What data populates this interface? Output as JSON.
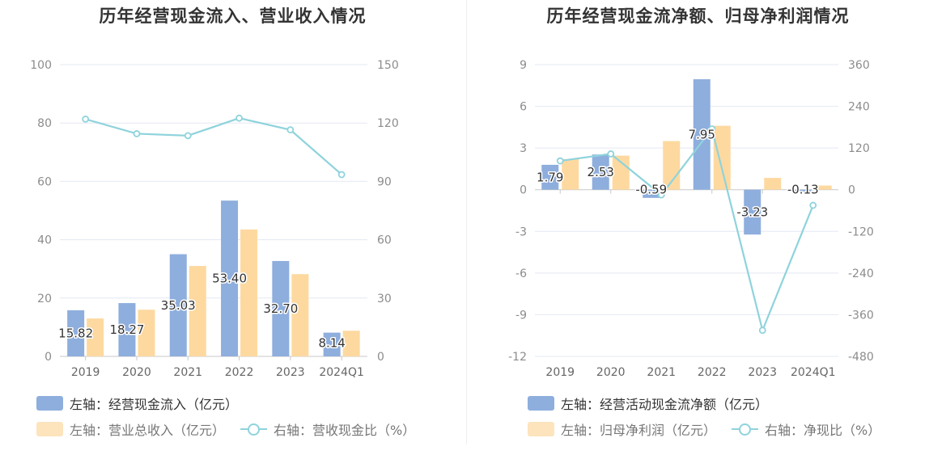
{
  "colors": {
    "cashflow_bar": "#8eaedd",
    "revenue_bar": "#fdd9a0",
    "ratio_line": "#8fd3dc",
    "grid": "#e3e8f2",
    "axis": "#cccccc"
  },
  "chart_data": [
    {
      "type": "bar",
      "title": "历年经营现金流入、营业收入情况",
      "categories": [
        "2019",
        "2020",
        "2021",
        "2022",
        "2023",
        "2024Q1"
      ],
      "left_axis": {
        "ylim": [
          0,
          100
        ],
        "ticks": [
          "0",
          "20",
          "40",
          "60",
          "80",
          "100"
        ]
      },
      "right_axis": {
        "ylim": [
          0,
          150
        ],
        "ticks": [
          "0",
          "30",
          "60",
          "90",
          "120",
          "150"
        ]
      },
      "series": [
        {
          "name": "左轴：经营现金流入（亿元）",
          "axis": "left",
          "kind": "bar",
          "values": [
            15.82,
            18.27,
            35.03,
            53.4,
            32.7,
            8.14
          ],
          "labels": [
            "15.82",
            "18.27",
            "35.03",
            "53.40",
            "32.70",
            "8.14"
          ]
        },
        {
          "name": "左轴：营业总收入（亿元）",
          "axis": "left",
          "kind": "bar",
          "values": [
            13.0,
            16.0,
            31.0,
            43.5,
            28.2,
            8.8
          ]
        },
        {
          "name": "右轴：营收现金比（%）",
          "axis": "right",
          "kind": "line",
          "values": [
            122,
            114.5,
            113.5,
            122.5,
            116.5,
            93.5
          ]
        }
      ]
    },
    {
      "type": "bar",
      "title": "历年经营现金流净额、归母净利润情况",
      "categories": [
        "2019",
        "2020",
        "2021",
        "2022",
        "2023",
        "2024Q1"
      ],
      "left_axis": {
        "ylim": [
          -12,
          9
        ],
        "ticks": [
          "-12",
          "-9",
          "-6",
          "-3",
          "0",
          "3",
          "6",
          "9"
        ]
      },
      "right_axis": {
        "ylim": [
          -480,
          360
        ],
        "ticks": [
          "-480",
          "-360",
          "-240",
          "-120",
          "0",
          "120",
          "240",
          "360"
        ]
      },
      "series": [
        {
          "name": "左轴：经营活动现金流净额（亿元）",
          "axis": "left",
          "kind": "bar",
          "values": [
            1.79,
            2.53,
            -0.59,
            7.95,
            -3.23,
            -0.13
          ],
          "labels": [
            "1.79",
            "2.53",
            "-0.59",
            "7.95",
            "-3.23",
            "-0.13"
          ]
        },
        {
          "name": "左轴：归母净利润（亿元）",
          "axis": "left",
          "kind": "bar",
          "values": [
            2.2,
            2.45,
            3.5,
            4.6,
            0.85,
            0.3
          ]
        },
        {
          "name": "右轴：净现比（%）",
          "axis": "right",
          "kind": "line",
          "values": [
            83,
            103,
            -15,
            175,
            -405,
            -45
          ]
        }
      ]
    }
  ]
}
